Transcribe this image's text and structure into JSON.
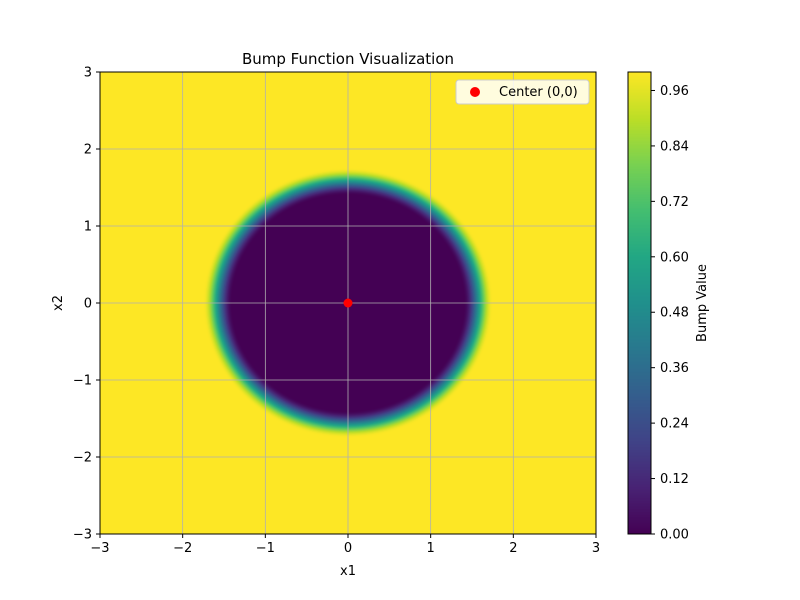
{
  "chart_data": {
    "type": "heatmap",
    "title": "Bump Function Visualization",
    "xlabel": "x1",
    "ylabel": "x2",
    "xlim": [
      -3,
      3
    ],
    "ylim": [
      -3,
      3
    ],
    "x_ticks": [
      -3,
      -2,
      -1,
      0,
      1,
      2,
      3
    ],
    "y_ticks": [
      -3,
      -2,
      -1,
      0,
      1,
      2,
      3
    ],
    "x_tick_labels": [
      "−3",
      "−2",
      "−1",
      "0",
      "1",
      "2",
      "3"
    ],
    "y_tick_labels": [
      "−3",
      "−2",
      "−1",
      "0",
      "1",
      "2",
      "3"
    ],
    "grid": true,
    "colormap": "viridis",
    "field": {
      "description_function": "radial",
      "flat_zero_radius": 1.4,
      "flat_one_radius": 1.75,
      "value_inside": 0.0,
      "value_outside": 1.0
    },
    "colorbar": {
      "label": "Bump Value",
      "range": [
        0.0,
        1.0
      ],
      "ticks": [
        0.0,
        0.12,
        0.24,
        0.36,
        0.48,
        0.6,
        0.72,
        0.84,
        0.96
      ],
      "tick_labels": [
        "0.00",
        "0.12",
        "0.24",
        "0.36",
        "0.48",
        "0.60",
        "0.72",
        "0.84",
        "0.96"
      ]
    },
    "scatter": [
      {
        "name": "Center (0,0)",
        "x": 0,
        "y": 0,
        "color": "#ff0000"
      }
    ],
    "legend": {
      "placement": "top-right",
      "entries": [
        "Center (0,0)"
      ]
    }
  }
}
